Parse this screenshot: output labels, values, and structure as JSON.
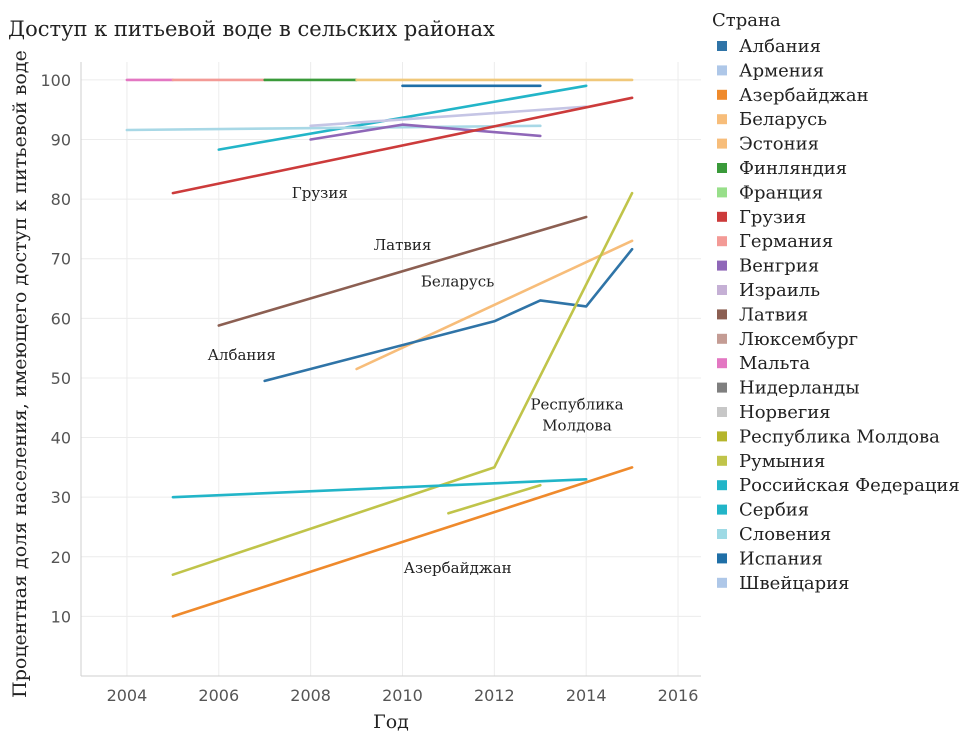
{
  "chart_data": {
    "type": "line",
    "title": "Доступ к питьевой воде в сельских районах",
    "xlabel": "Год",
    "ylabel": "Процентная доля населения, имеющего доступ к питьевой воде",
    "xlim": [
      2003,
      2016.5
    ],
    "ylim": [
      0,
      103
    ],
    "xticks": [
      2004,
      2006,
      2008,
      2010,
      2012,
      2014,
      2016
    ],
    "yticks": [
      10,
      20,
      30,
      40,
      50,
      60,
      70,
      80,
      90,
      100
    ],
    "grid": true,
    "legend": {
      "title": "Страна",
      "placement": "right",
      "entries": [
        {
          "label": "Албания",
          "color": "#2f74a7"
        },
        {
          "label": "Армения",
          "color": "#aec7e8"
        },
        {
          "label": "Азербайджан",
          "color": "#ef8a2c"
        },
        {
          "label": "Беларусь",
          "color": "#f7bd7a"
        },
        {
          "label": "Эстония",
          "color": "#f7bd7a"
        },
        {
          "label": "Финляндия",
          "color": "#3a9a3a"
        },
        {
          "label": "Франция",
          "color": "#98df8a"
        },
        {
          "label": "Грузия",
          "color": "#cc3b3b"
        },
        {
          "label": "Германия",
          "color": "#f39a96"
        },
        {
          "label": "Венгрия",
          "color": "#8f67b8"
        },
        {
          "label": "Израиль",
          "color": "#c5b0d5"
        },
        {
          "label": "Латвия",
          "color": "#8c5f52"
        },
        {
          "label": "Люксембург",
          "color": "#c49c94"
        },
        {
          "label": "Мальта",
          "color": "#e377c2"
        },
        {
          "label": "Нидерланды",
          "color": "#7f7f7f"
        },
        {
          "label": "Норвегия",
          "color": "#c7c7c7"
        },
        {
          "label": "Республика Молдова",
          "color": "#b5b52b"
        },
        {
          "label": "Румыния",
          "color": "#c0c44a"
        },
        {
          "label": "Российская Федерация",
          "color": "#22b5c8"
        },
        {
          "label": "Сербия",
          "color": "#22b5c8"
        },
        {
          "label": "Словения",
          "color": "#9edae5"
        },
        {
          "label": "Испания",
          "color": "#1f6fa7"
        },
        {
          "label": "Швейцария",
          "color": "#aec7e8"
        }
      ]
    },
    "series": [
      {
        "name": "Мальта",
        "color": "#e377c2",
        "points": [
          [
            2004,
            100
          ],
          [
            2005,
            100
          ]
        ]
      },
      {
        "name": "Германия",
        "color": "#f39a96",
        "points": [
          [
            2005,
            100
          ],
          [
            2007,
            100
          ]
        ]
      },
      {
        "name": "Финляндия",
        "color": "#3a9a3a",
        "points": [
          [
            2007,
            100
          ],
          [
            2009,
            100
          ]
        ]
      },
      {
        "name": "Эстония",
        "color": "#f0c87a",
        "points": [
          [
            2009,
            100
          ],
          [
            2015,
            100
          ]
        ]
      },
      {
        "name": "Испания",
        "color": "#1f6fa7",
        "points": [
          [
            2010,
            99
          ],
          [
            2013,
            99
          ]
        ]
      },
      {
        "name": "Сербия",
        "color": "#22b5c8",
        "points": [
          [
            2006,
            88.3
          ],
          [
            2014,
            99
          ]
        ]
      },
      {
        "name": "Словения",
        "color": "#a8d8e6",
        "points": [
          [
            2004,
            91.6
          ],
          [
            2013,
            92.3
          ]
        ]
      },
      {
        "name": "Израиль",
        "color": "#c5c5e5",
        "points": [
          [
            2008,
            92.3
          ],
          [
            2014,
            95.5
          ]
        ]
      },
      {
        "name": "Венгрия",
        "color": "#8f67b8",
        "points": [
          [
            2008,
            90
          ],
          [
            2010,
            92.5
          ],
          [
            2013,
            90.6
          ]
        ]
      },
      {
        "name": "Грузия",
        "color": "#cc3b3b",
        "points": [
          [
            2005,
            81
          ],
          [
            2015,
            97
          ]
        ]
      },
      {
        "name": "Латвия",
        "color": "#8c5f52",
        "points": [
          [
            2006,
            58.8
          ],
          [
            2014,
            77
          ]
        ]
      },
      {
        "name": "Беларусь",
        "color": "#f7bd7a",
        "points": [
          [
            2009,
            51.5
          ],
          [
            2015,
            73
          ]
        ]
      },
      {
        "name": "Албания",
        "color": "#2f74a7",
        "points": [
          [
            2007,
            49.5
          ],
          [
            2012,
            59.5
          ],
          [
            2013,
            63
          ],
          [
            2014,
            62
          ],
          [
            2015,
            71.6
          ]
        ]
      },
      {
        "name": "Республика Молдова",
        "color": "#c0c44a",
        "points": [
          [
            2005,
            17
          ],
          [
            2012,
            35
          ],
          [
            2015,
            81
          ]
        ]
      },
      {
        "name": "Румыния",
        "color": "#c0c44a",
        "points": [
          [
            2011,
            27.3
          ],
          [
            2013,
            32
          ]
        ]
      },
      {
        "name": "Российская Федерация",
        "color": "#22b5c8",
        "points": [
          [
            2005,
            30
          ],
          [
            2014,
            33
          ]
        ]
      },
      {
        "name": "Азербайджан",
        "color": "#ef8a2c",
        "points": [
          [
            2005,
            10
          ],
          [
            2015,
            35
          ]
        ]
      }
    ],
    "annotations": [
      {
        "text": "Грузия",
        "x": 2008.2,
        "y": 80.2
      },
      {
        "text": "Латвия",
        "x": 2010,
        "y": 71.5
      },
      {
        "text": "Беларусь",
        "x": 2011.2,
        "y": 65.3
      },
      {
        "text": "Албания",
        "x": 2006.5,
        "y": 53
      },
      {
        "text": "Республика",
        "x": 2013.8,
        "y": 44.7
      },
      {
        "text": "Молдова",
        "x": 2013.8,
        "y": 41.2
      },
      {
        "text": "Азербайджан",
        "x": 2011.2,
        "y": 17.3
      }
    ]
  }
}
